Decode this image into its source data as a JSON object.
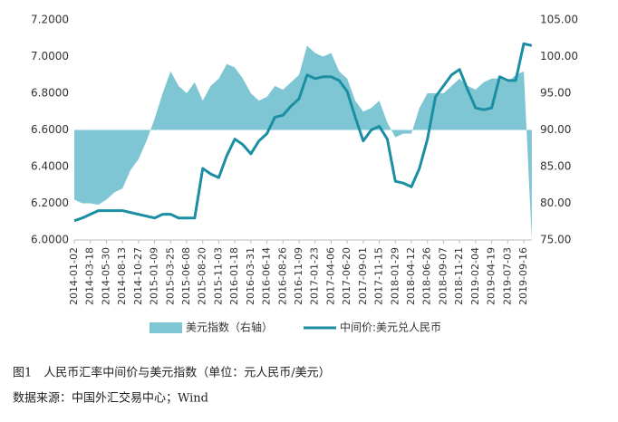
{
  "chart_data": {
    "type": "line",
    "categories": [
      "2014-01-02",
      null,
      "2014-03-18",
      null,
      "2014-05-30",
      null,
      "2014-08-13",
      null,
      "2014-10-27",
      null,
      "2015-01-09",
      null,
      "2015-03-25",
      null,
      "2015-06-08",
      null,
      "2015-08-20",
      null,
      "2015-11-03",
      null,
      "2016-01-18",
      null,
      "2016-03-31",
      null,
      "2016-06-14",
      null,
      "2016-08-26",
      null,
      "2016-11-09",
      null,
      "2017-01-23",
      null,
      "2017-04-06",
      null,
      "2017-06-20",
      null,
      "2017-09-01",
      null,
      "2017-11-15",
      null,
      "2018-01-29",
      null,
      "2018-04-12",
      null,
      "2018-06-26",
      null,
      "2018-09-07",
      null,
      "2018-11-21",
      null,
      "2019-02-04",
      null,
      "2019-04-19",
      null,
      "2019-07-03",
      null,
      "2019-09-16",
      null
    ],
    "series": [
      {
        "name": "美元指数（右轴）",
        "color": "#7fc6d4",
        "axis": "y2",
        "kind": "area",
        "values": [
          80.5,
          80,
          80,
          79.8,
          80.5,
          81.5,
          82,
          84.5,
          86,
          88.5,
          91.5,
          95,
          98,
          96,
          95,
          96.5,
          94,
          96,
          97,
          99,
          98.5,
          97,
          95,
          94,
          94.5,
          96,
          95.5,
          96.5,
          97.5,
          101.5,
          100.5,
          100,
          100.5,
          98,
          97,
          94,
          92.5,
          93,
          94,
          91,
          89,
          89.5,
          89.5,
          93,
          95,
          95,
          95,
          96,
          97,
          96,
          95.5,
          96.5,
          97,
          97,
          96.5,
          97.5,
          98,
          75
        ]
      },
      {
        "name": "中间价:美元兑人民币",
        "color": "#1a8ea3",
        "axis": "y",
        "kind": "line",
        "values": [
          6.105,
          6.12,
          6.14,
          6.16,
          6.16,
          6.16,
          6.16,
          6.15,
          6.14,
          6.13,
          6.12,
          6.14,
          6.14,
          6.12,
          6.12,
          6.12,
          6.39,
          6.36,
          6.34,
          6.46,
          6.55,
          6.52,
          6.47,
          6.54,
          6.58,
          6.67,
          6.68,
          6.73,
          6.77,
          6.9,
          6.88,
          6.89,
          6.89,
          6.87,
          6.81,
          6.67,
          6.54,
          6.6,
          6.62,
          6.55,
          6.32,
          6.31,
          6.29,
          6.39,
          6.55,
          6.78,
          6.84,
          6.9,
          6.93,
          6.82,
          6.72,
          6.71,
          6.72,
          6.89,
          6.87,
          6.87,
          7.07,
          7.06
        ]
      }
    ],
    "ylim": [
      6.0,
      7.2
    ],
    "yticks": [
      {
        "value": 6.0,
        "label": "6.0000"
      },
      {
        "value": 6.2,
        "label": "6.2000"
      },
      {
        "value": 6.4,
        "label": "6.4000"
      },
      {
        "value": 6.6,
        "label": "6.6000"
      },
      {
        "value": 6.8,
        "label": "6.8000"
      },
      {
        "value": 7.0,
        "label": "7.0000"
      },
      {
        "value": 7.2,
        "label": "7.2000"
      }
    ],
    "y2lim": [
      75,
      105
    ],
    "y2ticks": [
      {
        "value": 75,
        "label": "75.00"
      },
      {
        "value": 80,
        "label": "80.00"
      },
      {
        "value": 85,
        "label": "85.00"
      },
      {
        "value": 90,
        "label": "90.00"
      },
      {
        "value": 95,
        "label": "95.00"
      },
      {
        "value": 100,
        "label": "100.00"
      },
      {
        "value": 105,
        "label": "105.00"
      }
    ],
    "area_base": 90,
    "caption": "图1　人民币汇率中间价与美元指数（单位：元人民币/美元）",
    "source": "数据来源：中国外汇交易中心；Wind"
  }
}
